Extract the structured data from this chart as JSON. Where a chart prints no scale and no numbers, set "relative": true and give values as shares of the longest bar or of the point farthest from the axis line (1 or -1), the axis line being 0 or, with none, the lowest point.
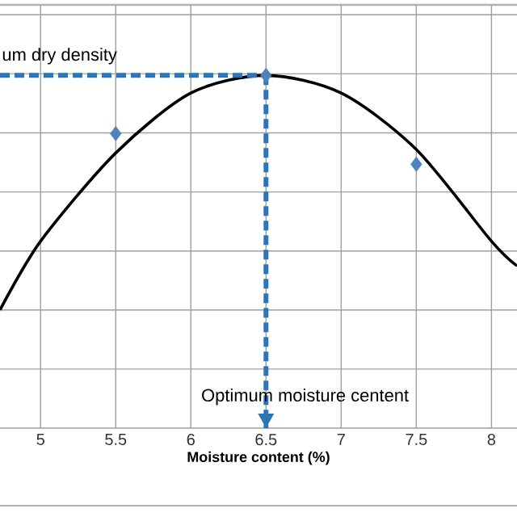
{
  "chart_data": {
    "type": "line",
    "xlabel": "Moisture content (%)",
    "relative": true,
    "xlim": [
      4.73,
      8.17
    ],
    "xticks": [
      5,
      {
        "value": 5.5,
        "label": "5.5"
      },
      6,
      {
        "value": 6.5,
        "label": "6.5"
      },
      7,
      {
        "value": 7.5,
        "label": "7.5"
      },
      8
    ],
    "tick_labels": "x",
    "grid": true,
    "series": [
      {
        "color": "#000000",
        "marker": "none",
        "line_style": "solid",
        "x": [
          4.73,
          5,
          5.5,
          6,
          6.5,
          7,
          7.5,
          8,
          8.17
        ],
        "values": [
          0.335,
          0.53,
          0.78,
          0.95,
          1,
          0.95,
          0.79,
          0.53,
          0.46
        ]
      },
      {
        "type": "scatter",
        "color": "#4f81bd",
        "marker": "diamond",
        "x": [
          5.5,
          6.5,
          7.5
        ],
        "values": [
          0.835,
          1,
          0.748
        ]
      },
      {
        "color": "#2e75b6",
        "marker": "none",
        "line_style": "dashed",
        "x": [
          4.73,
          6.5
        ],
        "values": [
          1,
          1
        ]
      },
      {
        "color": "#2e75b6",
        "marker": "none",
        "line_style": "dashed",
        "x": [
          6.5,
          6.5
        ],
        "values": [
          1,
          0
        ]
      }
    ],
    "annotations": [
      "um dry density",
      "Optimum moisture centent"
    ]
  }
}
